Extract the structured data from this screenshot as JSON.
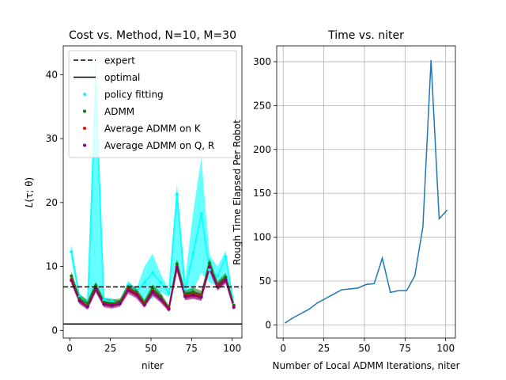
{
  "chart_data": [
    {
      "type": "line",
      "title": "Cost vs. Method, N=10, M=30",
      "xlabel": "niter",
      "ylabel": "L(τ; θ)",
      "ylabel_main": "L",
      "ylabel_args": "(τ; θ)",
      "xlim": [
        -4,
        106
      ],
      "ylim": [
        -1.2,
        44.5
      ],
      "xticks": [
        0,
        25,
        50,
        75,
        100
      ],
      "yticks": [
        0,
        10,
        20,
        30,
        40
      ],
      "grid": false,
      "legend_position": "upper-right",
      "x": [
        1,
        6,
        11,
        16,
        21,
        26,
        31,
        36,
        41,
        46,
        51,
        56,
        61,
        66,
        71,
        76,
        81,
        86,
        91,
        96,
        101
      ],
      "reference_lines": [
        {
          "name": "expert",
          "value": 6.8,
          "style": "dashed",
          "color": "#000000"
        },
        {
          "name": "optimal",
          "value": 1.0,
          "style": "solid",
          "color": "#000000"
        }
      ],
      "series": [
        {
          "name": "policy fitting",
          "color": "#00ffff",
          "mean": [
            12.3,
            5.2,
            4.0,
            38.0,
            4.7,
            4.5,
            4.2,
            7.1,
            6.0,
            7.5,
            9.0,
            7.5,
            5.8,
            21.3,
            6.5,
            12.0,
            18.2,
            9.5,
            8.5,
            11.5,
            4.0
          ],
          "lower": [
            11.0,
            4.6,
            3.5,
            6.0,
            4.2,
            4.0,
            3.8,
            6.4,
            5.5,
            4.5,
            5.0,
            6.0,
            5.2,
            10.0,
            5.5,
            6.2,
            9.0,
            7.5,
            7.0,
            8.5,
            3.5
          ],
          "upper": [
            13.5,
            5.8,
            4.5,
            44.0,
            5.2,
            5.0,
            4.6,
            7.8,
            6.5,
            10.0,
            12.0,
            8.8,
            6.4,
            23.0,
            8.0,
            18.5,
            27.0,
            11.8,
            10.0,
            12.5,
            4.5
          ]
        },
        {
          "name": "ADMM",
          "color": "#008000",
          "mean": [
            8.5,
            5.0,
            4.2,
            7.0,
            4.4,
            4.2,
            4.5,
            6.8,
            6.0,
            4.3,
            6.5,
            5.3,
            3.5,
            10.4,
            5.6,
            6.0,
            5.5,
            10.5,
            7.0,
            8.3,
            3.9
          ],
          "lower": [
            7.8,
            4.4,
            3.6,
            6.4,
            3.9,
            3.7,
            4.0,
            6.1,
            5.4,
            3.8,
            5.9,
            4.7,
            3.2,
            9.6,
            5.0,
            5.4,
            4.9,
            9.6,
            6.4,
            7.6,
            3.5
          ],
          "upper": [
            9.2,
            5.6,
            4.8,
            7.6,
            5.0,
            4.8,
            5.0,
            7.4,
            6.6,
            4.8,
            7.2,
            5.9,
            3.9,
            11.2,
            6.2,
            6.7,
            6.2,
            11.3,
            7.7,
            9.0,
            4.4
          ]
        },
        {
          "name": "Average ADMM on K",
          "color": "#ff0000",
          "mean": [
            8.0,
            4.7,
            3.8,
            6.6,
            4.2,
            4.0,
            4.3,
            6.5,
            5.8,
            4.1,
            6.1,
            5.0,
            3.4,
            10.0,
            5.4,
            5.6,
            5.3,
            10.0,
            6.9,
            8.0,
            3.7
          ],
          "lower": [
            7.5,
            4.3,
            3.4,
            6.1,
            3.8,
            3.6,
            3.9,
            6.0,
            5.3,
            3.7,
            5.6,
            4.5,
            3.1,
            9.4,
            4.9,
            5.1,
            4.8,
            9.4,
            6.4,
            7.5,
            3.4
          ],
          "upper": [
            8.5,
            5.1,
            4.2,
            7.1,
            4.6,
            4.4,
            4.7,
            7.0,
            6.3,
            4.5,
            6.6,
            5.5,
            3.7,
            10.6,
            5.9,
            6.1,
            5.8,
            10.6,
            7.4,
            8.5,
            4.0
          ]
        },
        {
          "name": "Average ADMM on Q, R",
          "color": "#800080",
          "mean": [
            7.8,
            4.6,
            3.7,
            6.5,
            4.1,
            3.9,
            4.2,
            6.3,
            5.6,
            4.0,
            6.0,
            4.9,
            3.3,
            9.8,
            5.3,
            5.5,
            5.2,
            9.9,
            6.8,
            7.9,
            3.6
          ],
          "lower": [
            7.2,
            4.1,
            3.2,
            5.9,
            3.6,
            3.4,
            3.7,
            5.7,
            5.0,
            3.5,
            5.4,
            4.3,
            2.9,
            9.1,
            4.7,
            4.9,
            4.6,
            9.2,
            6.2,
            7.3,
            3.2
          ],
          "upper": [
            8.4,
            5.1,
            4.2,
            7.1,
            4.6,
            4.4,
            4.7,
            6.9,
            6.2,
            4.5,
            6.6,
            5.5,
            3.7,
            10.5,
            5.9,
            6.1,
            5.8,
            10.6,
            7.4,
            8.5,
            4.0
          ]
        }
      ],
      "legend": [
        "expert",
        "optimal",
        "policy fitting",
        "ADMM",
        "Average ADMM on K",
        "Average ADMM on Q, R"
      ]
    },
    {
      "type": "line",
      "title": "Time vs. niter",
      "xlabel": "Number of Local ADMM Iterations, niter",
      "ylabel": "Rough Time Elapsed Per Robot",
      "xlim": [
        -4,
        106
      ],
      "ylim": [
        -15,
        318
      ],
      "xticks": [
        0,
        25,
        50,
        75,
        100
      ],
      "yticks": [
        0,
        50,
        100,
        150,
        200,
        250,
        300
      ],
      "grid": true,
      "series": [
        {
          "name": "time",
          "color": "#1f77b4",
          "x": [
            1,
            6,
            11,
            16,
            21,
            26,
            31,
            36,
            41,
            46,
            51,
            56,
            61,
            66,
            71,
            76,
            81,
            86,
            91,
            96,
            101
          ],
          "values": [
            2,
            8,
            13,
            18,
            25,
            30,
            35,
            40,
            41,
            42,
            46,
            47,
            76,
            37,
            39,
            39,
            56,
            112,
            302,
            121,
            131
          ]
        }
      ]
    }
  ]
}
